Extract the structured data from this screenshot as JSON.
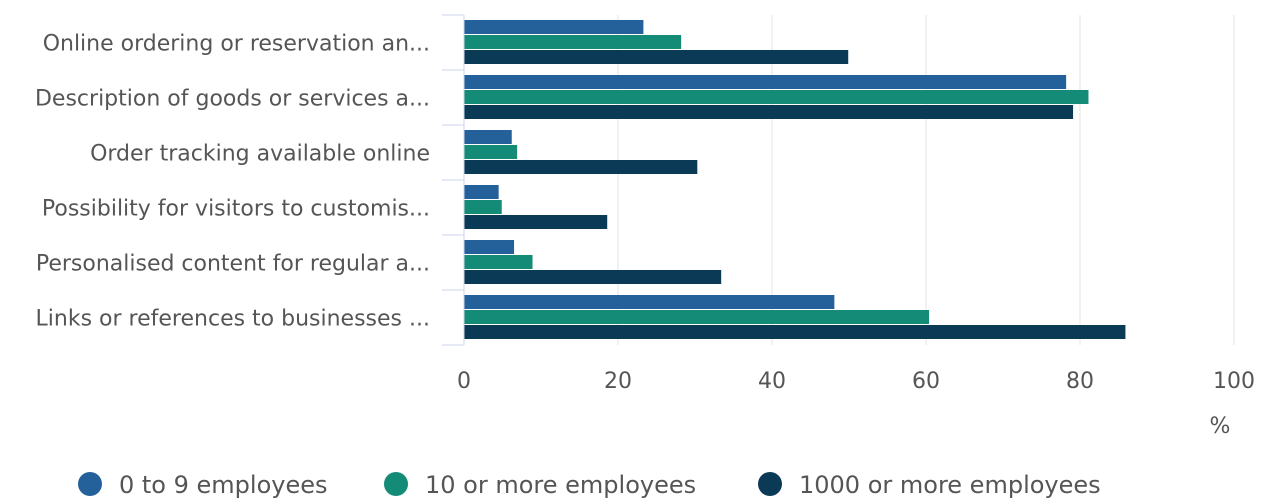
{
  "chart_data": {
    "type": "bar",
    "orientation": "horizontal",
    "categories": [
      "Online ordering or reservation an...",
      "Description of goods or services a...",
      "Order tracking available online",
      "Possibility for visitors to customis...",
      "Personalised content for regular a...",
      "Links or references to businesses ..."
    ],
    "series": [
      {
        "name": "0 to 9 employees",
        "color": "#24609a",
        "values": [
          23.3,
          78.2,
          6.2,
          4.5,
          6.5,
          48.1
        ]
      },
      {
        "name": "10 or more employees",
        "color": "#138b77",
        "values": [
          28.2,
          81.1,
          6.9,
          4.9,
          8.9,
          60.4
        ]
      },
      {
        "name": "1000 or more employees",
        "color": "#0a3a55",
        "values": [
          49.9,
          79.1,
          30.3,
          18.6,
          33.4,
          85.9
        ]
      }
    ],
    "xlim": [
      0,
      100
    ],
    "xticks": [
      "0",
      "20",
      "40",
      "60",
      "80",
      "100"
    ],
    "xunit": "%",
    "grid": true,
    "legend_position": "bottom"
  }
}
